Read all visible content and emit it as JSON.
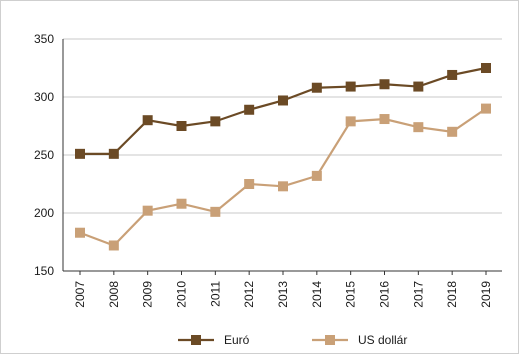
{
  "chart_data": {
    "type": "line",
    "categories": [
      "2007",
      "2008",
      "2009",
      "2010",
      "2011",
      "2012",
      "2013",
      "2014",
      "2015",
      "2016",
      "2017",
      "2018",
      "2019"
    ],
    "series": [
      {
        "name": "Euró",
        "color": "#6b4a25",
        "values": [
          251,
          251,
          280,
          275,
          279,
          289,
          297,
          308,
          309,
          311,
          309,
          319,
          325
        ]
      },
      {
        "name": "US dollár",
        "color": "#c9a077",
        "values": [
          183,
          172,
          202,
          208,
          201,
          225,
          223,
          232,
          279,
          281,
          274,
          270,
          290
        ]
      }
    ],
    "y_ticks": [
      150,
      200,
      250,
      300,
      350
    ],
    "ylim": [
      150,
      350
    ],
    "grid": true,
    "marker": "square",
    "legend_position": "bottom"
  }
}
